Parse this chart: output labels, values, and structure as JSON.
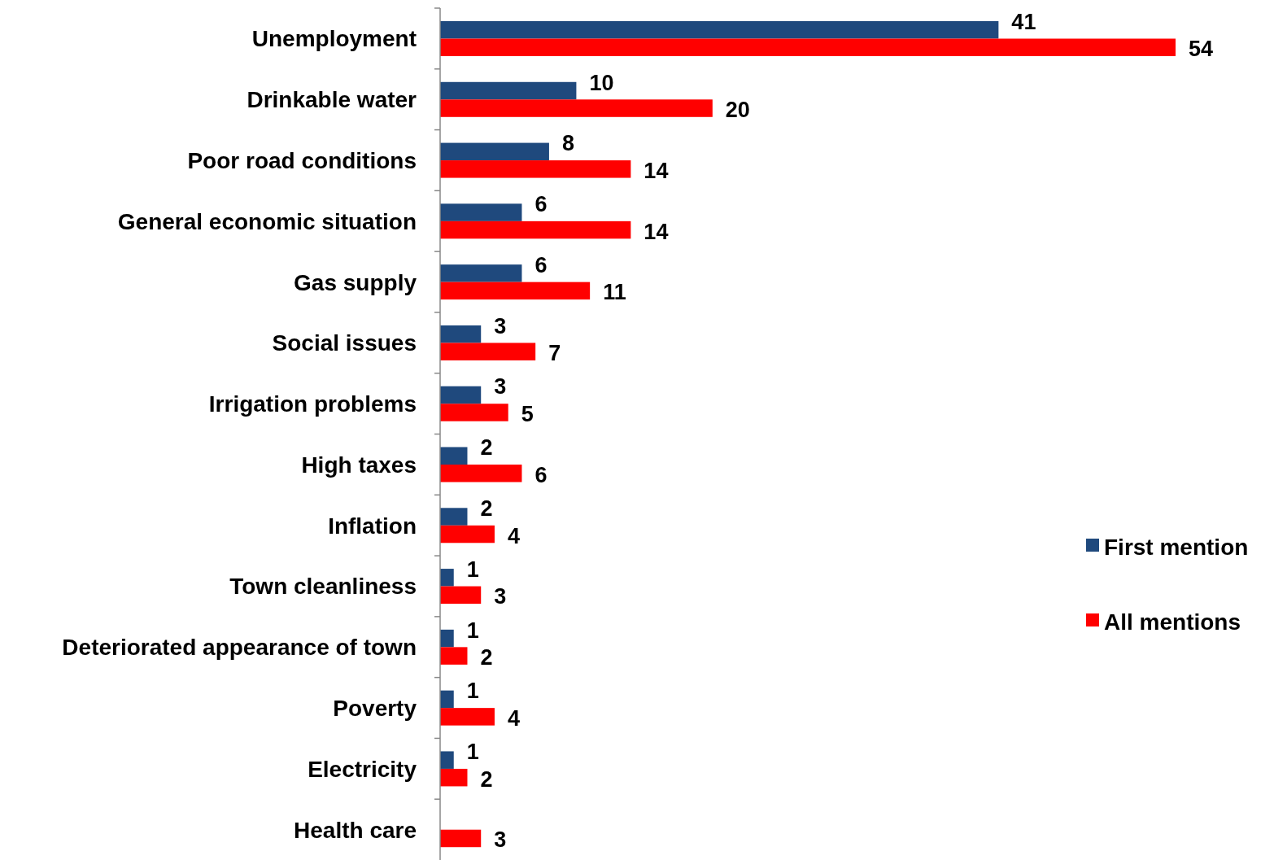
{
  "chart_data": {
    "type": "bar",
    "orientation": "horizontal",
    "categories": [
      "Unemployment",
      "Drinkable water",
      "Poor road conditions",
      "General economic situation",
      "Gas supply",
      "Social issues",
      "Irrigation problems",
      "High taxes",
      "Inflation",
      "Town cleanliness",
      "Deteriorated appearance of town",
      "Poverty",
      "Electricity",
      "Health care"
    ],
    "series": [
      {
        "name": "First mention",
        "color": "#1f497d",
        "values": [
          41,
          10,
          8,
          6,
          6,
          3,
          3,
          2,
          2,
          1,
          1,
          1,
          1,
          null
        ]
      },
      {
        "name": "All mentions",
        "color": "#ff0000",
        "values": [
          54,
          20,
          14,
          14,
          11,
          7,
          5,
          6,
          4,
          3,
          2,
          4,
          2,
          3
        ]
      }
    ],
    "data_labels": true,
    "legend": "right"
  }
}
